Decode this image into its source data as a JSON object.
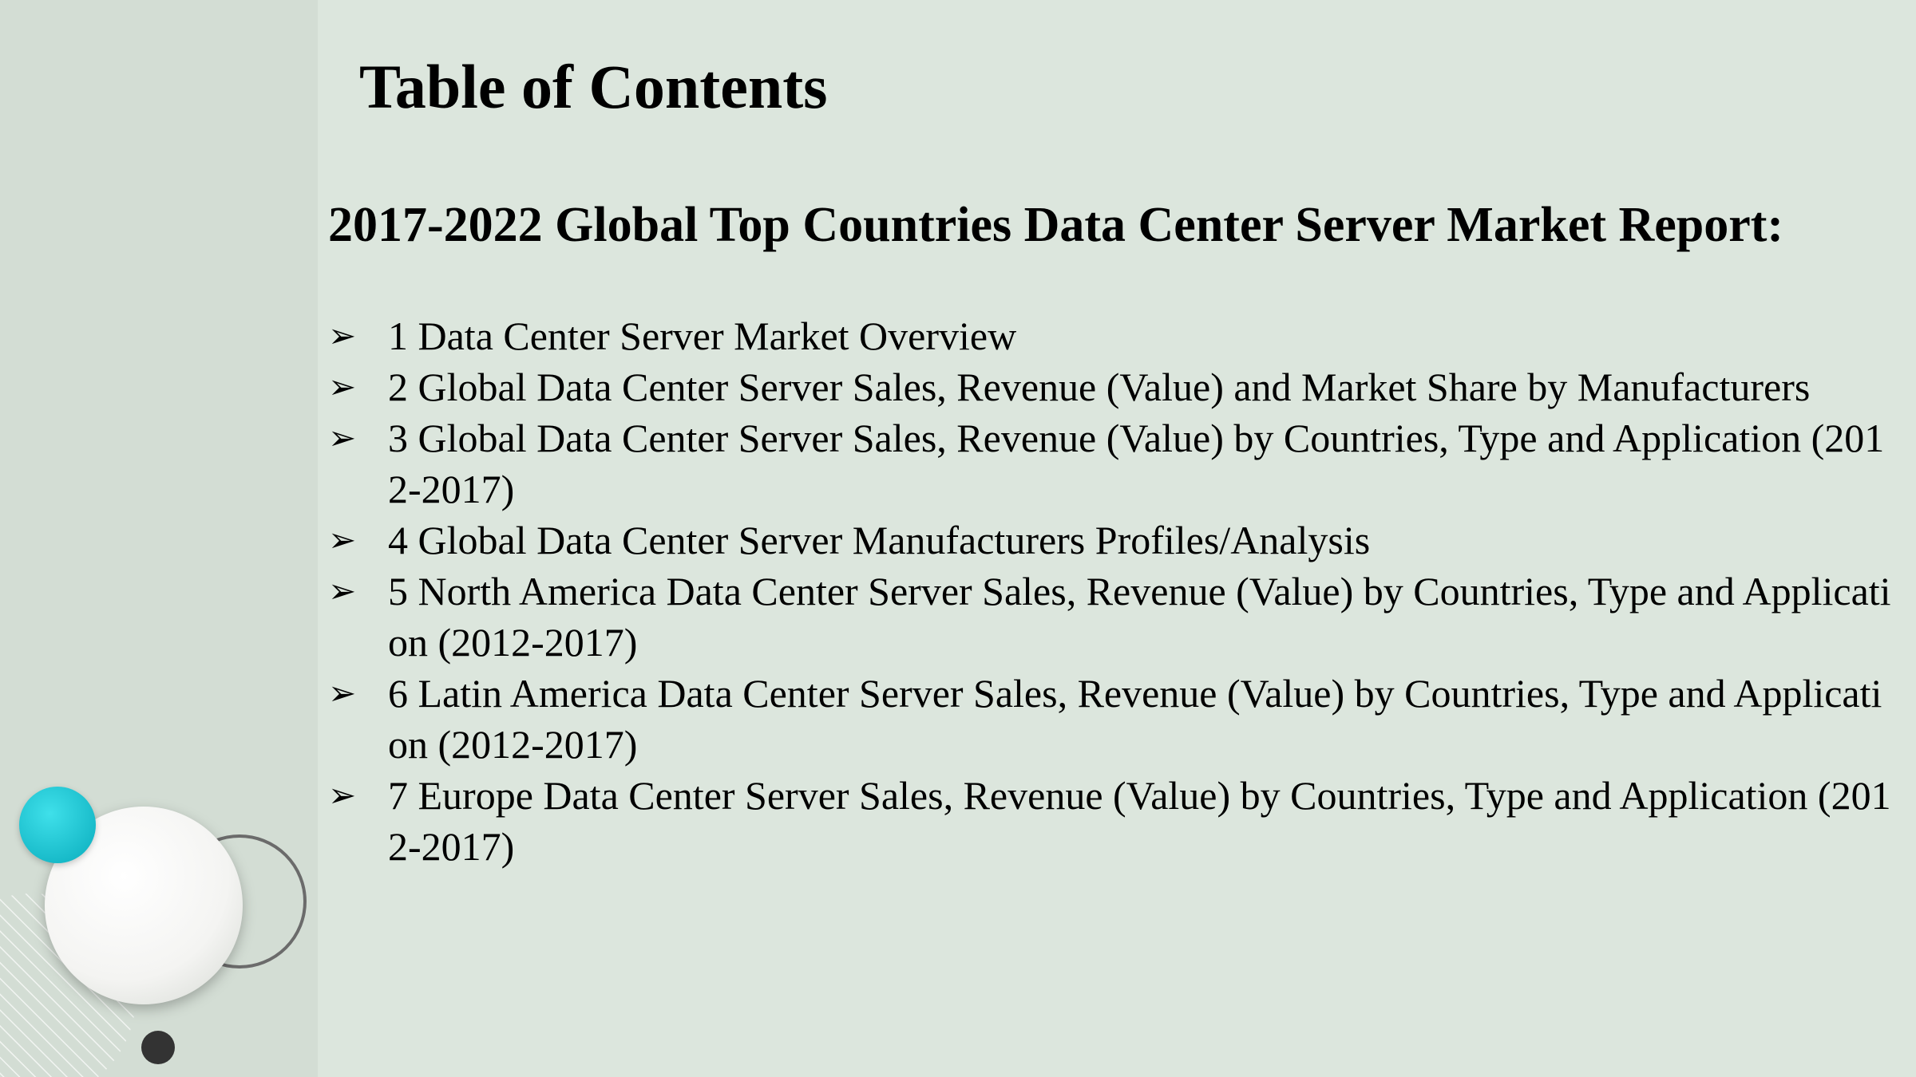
{
  "slide": {
    "title": "Table of Contents",
    "subtitle": "2017-2022 Global Top Countries Data Center Server Market Report:",
    "bullet_icon": "arrow-bullet-icon",
    "items": [
      {
        "text": "1 Data Center Server Market Overview"
      },
      {
        "text": "2 Global Data Center Server Sales, Revenue (Value) and Market Share by Manufacturers"
      },
      {
        "text": "3 Global Data Center Server Sales, Revenue (Value) by Countries, Type and Application (2012-2017)"
      },
      {
        "text": "4 Global Data Center Server Manufacturers Profiles/Analysis"
      },
      {
        "text": "5 North America Data Center Server Sales, Revenue (Value) by Countries, Type and Application (2012-2017)"
      },
      {
        "text": "6 Latin America Data Center Server Sales, Revenue (Value) by Countries, Type and Application (2012-2017)"
      },
      {
        "text": "7 Europe Data Center Server Sales, Revenue (Value) by Countries, Type and Application (2012-2017)"
      }
    ]
  },
  "colors": {
    "background": "#dce6dd",
    "left_band": "#d3ddd4",
    "accent_teal": "#1fc8d6",
    "dark_dot": "#333333"
  }
}
